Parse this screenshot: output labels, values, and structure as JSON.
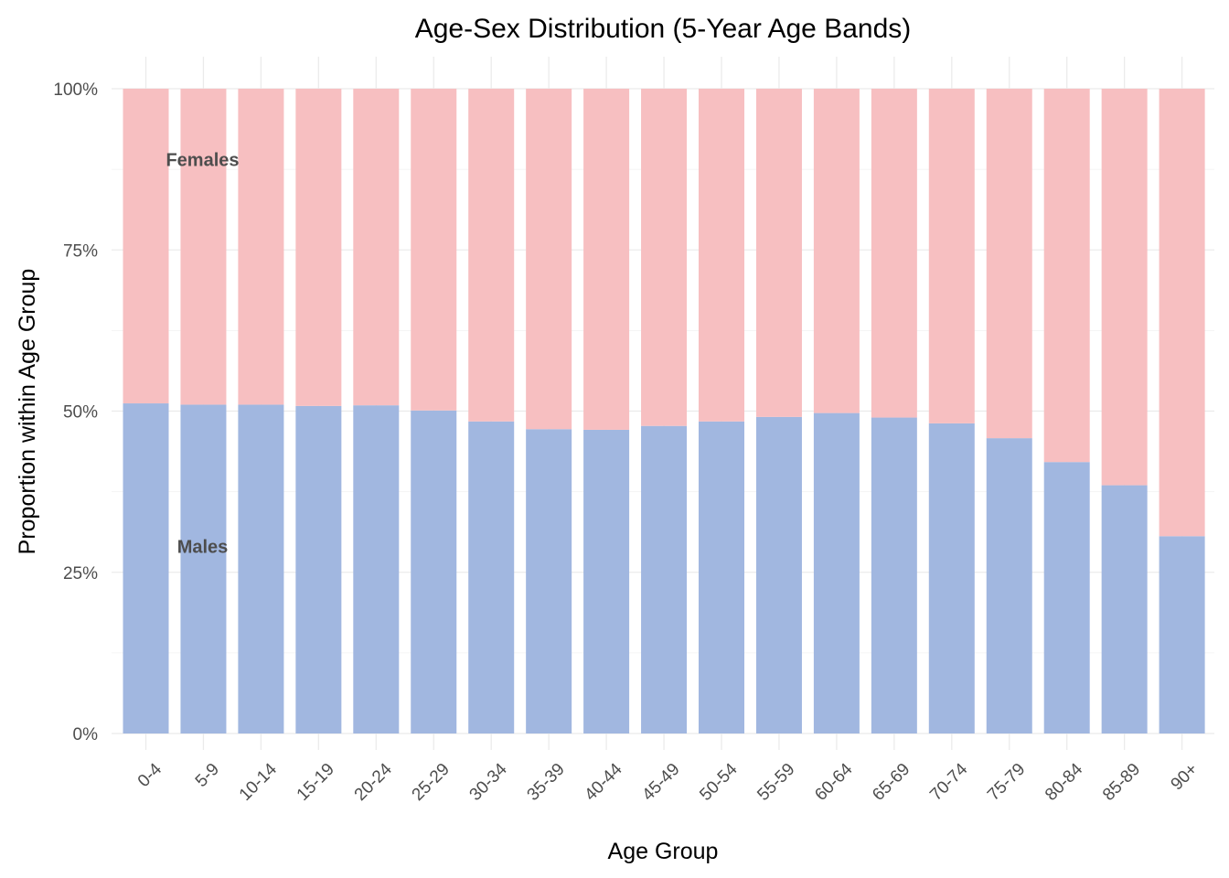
{
  "chart_data": {
    "type": "bar",
    "stacked": true,
    "title": "Age-Sex Distribution (5-Year Age Bands)",
    "xlabel": "Age Group",
    "ylabel": "Proportion within Age Group",
    "ylim": [
      0,
      1
    ],
    "y_ticks": [
      0,
      0.25,
      0.5,
      0.75,
      1
    ],
    "y_tick_labels": [
      "0%",
      "25%",
      "50%",
      "75%",
      "100%"
    ],
    "grid": true,
    "legend": "none",
    "categories": [
      "0-4",
      "5-9",
      "10-14",
      "15-19",
      "20-24",
      "25-29",
      "30-34",
      "35-39",
      "40-44",
      "45-49",
      "50-54",
      "55-59",
      "60-64",
      "65-69",
      "70-74",
      "75-79",
      "80-84",
      "85-89",
      "90+"
    ],
    "series": [
      {
        "name": "Males",
        "color": "#a1b7e0",
        "values": [
          0.512,
          0.51,
          0.51,
          0.508,
          0.509,
          0.501,
          0.484,
          0.472,
          0.471,
          0.477,
          0.484,
          0.491,
          0.497,
          0.49,
          0.481,
          0.458,
          0.421,
          0.385,
          0.306
        ]
      },
      {
        "name": "Females",
        "color": "#f7bfc1",
        "values": [
          0.488,
          0.49,
          0.49,
          0.492,
          0.491,
          0.499,
          0.516,
          0.528,
          0.529,
          0.523,
          0.516,
          0.509,
          0.503,
          0.51,
          0.519,
          0.542,
          0.579,
          0.615,
          0.694
        ]
      }
    ],
    "annotations": [
      {
        "text": "Females",
        "category": "0-4",
        "y": 0.89
      },
      {
        "text": "Males",
        "category": "0-4",
        "y": 0.29
      }
    ]
  }
}
